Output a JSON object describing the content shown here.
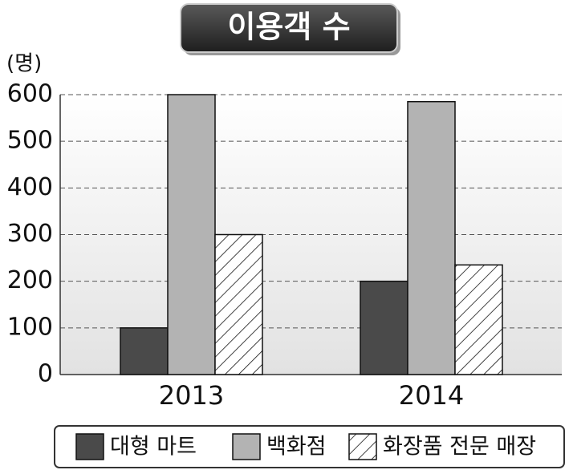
{
  "chart_data": {
    "type": "bar",
    "title": "이용객 수",
    "y_label": "(명)",
    "categories": [
      "2013",
      "2014"
    ],
    "series": [
      {
        "name": "대형 마트",
        "color": "#4a4a4a",
        "values": [
          100,
          200
        ]
      },
      {
        "name": "백화점",
        "color": "#b3b3b3",
        "values": [
          600,
          585
        ]
      },
      {
        "name": "화장품 전문 매장",
        "color": "#ffffff",
        "hatch": true,
        "values": [
          300,
          235
        ]
      }
    ],
    "ylim": [
      0,
      600
    ],
    "yticks": [
      0,
      100,
      200,
      300,
      400,
      500,
      600
    ],
    "grid": true
  }
}
